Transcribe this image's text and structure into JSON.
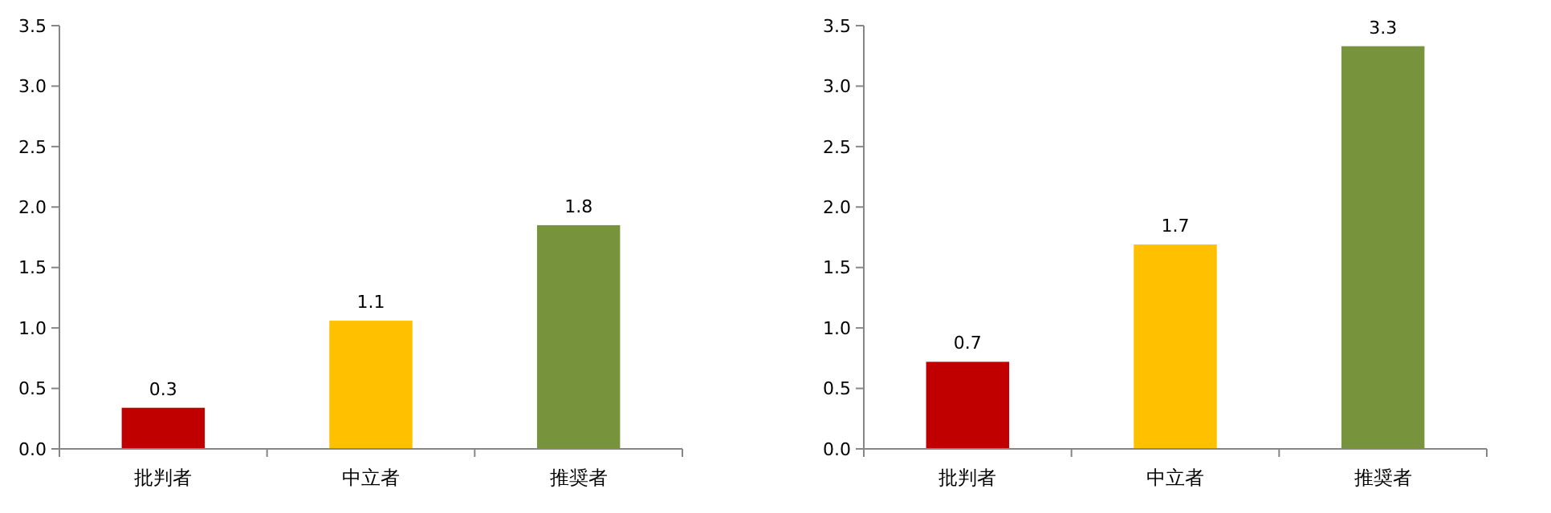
{
  "chart_data": [
    {
      "type": "bar",
      "categories": [
        "批判者",
        "中立者",
        "推奨者"
      ],
      "values": [
        0.34,
        1.06,
        1.85
      ],
      "colors": [
        "#c00000",
        "#ffc000",
        "#77933c"
      ],
      "value_labels": [
        "0.3",
        "1.1",
        "1.8"
      ],
      "ylim": [
        0,
        3.5
      ],
      "yticks": [
        {
          "value": 0,
          "label": "0.0"
        },
        {
          "value": 0.5,
          "label": "0.5"
        },
        {
          "value": 1,
          "label": "1.0"
        },
        {
          "value": 1.5,
          "label": "1.5"
        },
        {
          "value": 2,
          "label": "2.0"
        },
        {
          "value": 2.5,
          "label": "2.5"
        },
        {
          "value": 3,
          "label": "3.0"
        },
        {
          "value": 3.5,
          "label": "3.5"
        }
      ]
    },
    {
      "type": "bar",
      "categories": [
        "批判者",
        "中立者",
        "推奨者"
      ],
      "values": [
        0.72,
        1.69,
        3.33
      ],
      "colors": [
        "#c00000",
        "#ffc000",
        "#77933c"
      ],
      "value_labels": [
        "0.7",
        "1.7",
        "3.3"
      ],
      "ylim": [
        0,
        3.5
      ],
      "yticks": [
        {
          "value": 0,
          "label": "0.0"
        },
        {
          "value": 0.5,
          "label": "0.5"
        },
        {
          "value": 1,
          "label": "1.0"
        },
        {
          "value": 1.5,
          "label": "1.5"
        },
        {
          "value": 2,
          "label": "2.0"
        },
        {
          "value": 2.5,
          "label": "2.5"
        },
        {
          "value": 3,
          "label": "3.0"
        },
        {
          "value": 3.5,
          "label": "3.5"
        }
      ]
    }
  ]
}
